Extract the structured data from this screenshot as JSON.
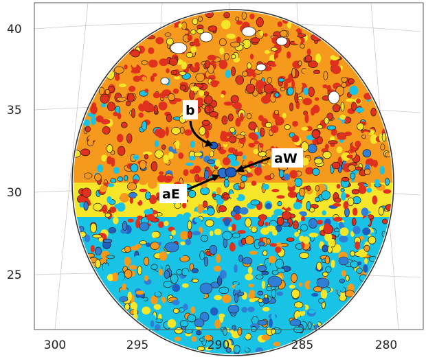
{
  "map": {
    "y_ticks": [
      {
        "label": "40",
        "value": 40
      },
      {
        "label": "35",
        "value": 35
      },
      {
        "label": "30",
        "value": 30
      },
      {
        "label": "25",
        "value": 25
      }
    ],
    "x_ticks": [
      {
        "label": "300",
        "value": 300
      },
      {
        "label": "295",
        "value": 295
      },
      {
        "label": "290",
        "value": 290
      },
      {
        "label": "285",
        "value": 285
      },
      {
        "label": "280",
        "value": 280
      }
    ],
    "colormap": {
      "deep_blue": "#1f5fc2",
      "blue": "#2f7fd6",
      "cyan": "#19c3e6",
      "yellow": "#f5e62a",
      "orange": "#f59a1c",
      "red": "#e0301e",
      "contour": "#2a1a12"
    },
    "annotations": [
      {
        "id": "b",
        "label": "b"
      },
      {
        "id": "aW",
        "label": "aW"
      },
      {
        "id": "aE",
        "label": "aE"
      }
    ],
    "features": [
      {
        "id": "b",
        "lon": 289.0,
        "lat": 32.8
      },
      {
        "id": "aW",
        "lon": 288.4,
        "lat": 31.2
      },
      {
        "id": "aE",
        "lon": 289.4,
        "lat": 31.1
      }
    ]
  }
}
